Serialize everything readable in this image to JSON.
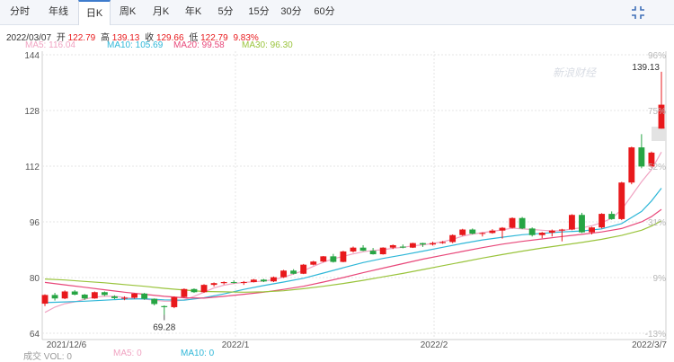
{
  "tabs": [
    {
      "label": "分时",
      "active": false
    },
    {
      "label": "年线",
      "active": false
    },
    {
      "label": "日K",
      "active": true
    },
    {
      "label": "周K",
      "active": false
    },
    {
      "label": "月K",
      "active": false
    },
    {
      "label": "年K",
      "active": false
    },
    {
      "label": "5分",
      "active": false
    },
    {
      "label": "15分",
      "active": false
    },
    {
      "label": "30分",
      "active": false
    },
    {
      "label": "60分",
      "active": false
    }
  ],
  "info": {
    "date": "2022/03/07",
    "open_label": "开",
    "open": "122.79",
    "high_label": "高",
    "high": "139.13",
    "close_label": "收",
    "close": "129.66",
    "low_label": "低",
    "low": "122.79",
    "change": "9.83%"
  },
  "ma_legend": [
    {
      "label": "MA5: 116.04",
      "color": "#f0a3c2"
    },
    {
      "label": "MA10: 105.69",
      "color": "#2fb7d8"
    },
    {
      "label": "MA20: 99.58",
      "color": "#e8487a"
    },
    {
      "label": "MA30: 96.30",
      "color": "#9ac43c"
    }
  ],
  "volume_legend": {
    "vol": "成交 VOL: 0",
    "ma5": "MA5: 0",
    "ma10": "MA10: 0"
  },
  "watermark": "新浪财经",
  "colors": {
    "up": "#e8191c",
    "down": "#27a544",
    "grid": "#e6e6e6",
    "axis_text": "#555"
  },
  "chart_data": {
    "type": "candlestick",
    "ylim": [
      64,
      146
    ],
    "y_ticks": [
      144,
      128,
      112,
      96,
      80,
      64
    ],
    "pct_ticks": [
      "96%",
      "75%",
      "52%",
      "31%",
      "9%",
      "-13%"
    ],
    "x_labels": [
      "2021/12/6",
      "2022/1",
      "2022/2",
      "2022/3/7"
    ],
    "annotations": [
      {
        "text": "139.13"
      },
      {
        "text": "69.28"
      }
    ],
    "candles": [
      [
        72.5,
        75.2,
        71.8,
        75.0
      ],
      [
        75.0,
        75.6,
        73.4,
        74.0
      ],
      [
        74.0,
        76.3,
        73.8,
        76.0
      ],
      [
        76.0,
        76.4,
        74.9,
        75.1
      ],
      [
        75.1,
        75.3,
        73.6,
        74.0
      ],
      [
        74.0,
        76.0,
        73.9,
        75.8
      ],
      [
        75.8,
        76.0,
        74.7,
        75.0
      ],
      [
        74.6,
        74.9,
        73.8,
        74.1
      ],
      [
        74.1,
        74.6,
        73.5,
        74.2
      ],
      [
        74.2,
        75.5,
        73.9,
        75.4
      ],
      [
        75.4,
        75.6,
        73.6,
        73.9
      ],
      [
        73.9,
        74.0,
        72.0,
        72.4
      ],
      [
        71.8,
        72.0,
        69.3,
        71.5
      ],
      [
        71.5,
        74.6,
        71.2,
        74.4
      ],
      [
        74.4,
        76.9,
        74.2,
        76.7
      ],
      [
        76.7,
        76.9,
        75.6,
        75.8
      ],
      [
        75.8,
        78.1,
        75.6,
        77.9
      ],
      [
        77.9,
        78.6,
        77.4,
        78.4
      ],
      [
        78.4,
        78.9,
        78.0,
        78.7
      ],
      [
        78.7,
        79.2,
        78.3,
        78.5
      ],
      [
        78.5,
        79.0,
        77.9,
        78.7
      ],
      [
        78.7,
        79.6,
        78.6,
        79.4
      ],
      [
        79.4,
        79.6,
        78.7,
        78.9
      ],
      [
        78.9,
        80.3,
        78.7,
        80.1
      ],
      [
        80.1,
        82.2,
        79.9,
        82.0
      ],
      [
        82.0,
        82.4,
        80.9,
        81.1
      ],
      [
        81.1,
        83.9,
        81.0,
        83.7
      ],
      [
        83.7,
        84.8,
        83.5,
        84.6
      ],
      [
        84.6,
        86.2,
        84.4,
        86.1
      ],
      [
        86.1,
        86.8,
        84.3,
        84.5
      ],
      [
        84.5,
        87.7,
        84.4,
        87.5
      ],
      [
        87.5,
        88.9,
        87.2,
        88.6
      ],
      [
        88.6,
        89.3,
        87.6,
        87.7
      ],
      [
        87.7,
        88.5,
        86.6,
        86.7
      ],
      [
        86.7,
        88.7,
        86.6,
        88.6
      ],
      [
        88.6,
        89.5,
        88.2,
        89.3
      ],
      [
        88.9,
        89.5,
        88.4,
        88.6
      ],
      [
        88.6,
        90.0,
        88.5,
        89.9
      ],
      [
        89.9,
        90.0,
        88.8,
        89.5
      ],
      [
        89.5,
        90.3,
        89.2,
        89.9
      ],
      [
        89.9,
        90.5,
        89.7,
        90.2
      ],
      [
        90.2,
        92.4,
        89.9,
        92.2
      ],
      [
        92.2,
        94.0,
        92.0,
        93.8
      ],
      [
        93.8,
        94.1,
        92.4,
        92.6
      ],
      [
        92.6,
        93.0,
        91.8,
        92.8
      ],
      [
        92.8,
        93.9,
        92.6,
        93.5
      ],
      [
        93.5,
        94.5,
        91.2,
        94.3
      ],
      [
        94.3,
        97.3,
        94.1,
        97.1
      ],
      [
        97.1,
        97.4,
        93.9,
        94.1
      ],
      [
        94.1,
        94.4,
        91.8,
        92.2
      ],
      [
        92.2,
        93.1,
        91.3,
        92.9
      ],
      [
        92.9,
        93.8,
        91.8,
        93.5
      ],
      [
        93.5,
        94.0,
        90.4,
        93.8
      ],
      [
        93.8,
        98.2,
        93.6,
        98.0
      ],
      [
        98.0,
        98.6,
        92.8,
        93.0
      ],
      [
        93.0,
        94.6,
        92.4,
        94.4
      ],
      [
        94.4,
        98.5,
        94.1,
        98.3
      ],
      [
        98.3,
        99.0,
        96.6,
        96.8
      ],
      [
        96.8,
        107.5,
        96.5,
        107.3
      ],
      [
        107.3,
        117.6,
        106.8,
        117.4
      ],
      [
        117.4,
        121.2,
        111.4,
        111.9
      ],
      [
        111.9,
        116.2,
        111.6,
        115.9
      ],
      [
        122.79,
        139.13,
        122.79,
        129.66
      ]
    ],
    "series": [
      {
        "name": "MA5",
        "values": [
          [
            0,
            70.0
          ],
          [
            1,
            71.5
          ],
          [
            2,
            72.5
          ],
          [
            3,
            73.0
          ],
          [
            4,
            73.8
          ],
          [
            5,
            74.4
          ],
          [
            6,
            74.6
          ],
          [
            7,
            74.6
          ],
          [
            8,
            74.3
          ],
          [
            9,
            74.0
          ],
          [
            10,
            73.8
          ],
          [
            11,
            73.5
          ],
          [
            12,
            73.2
          ],
          [
            13,
            73.2
          ],
          [
            14,
            73.6
          ],
          [
            15,
            74.6
          ],
          [
            16,
            75.8
          ],
          [
            17,
            77.0
          ],
          [
            18,
            77.8
          ],
          [
            19,
            78.3
          ],
          [
            20,
            78.6
          ],
          [
            21,
            78.8
          ],
          [
            22,
            79.0
          ],
          [
            23,
            79.4
          ],
          [
            24,
            80.1
          ],
          [
            25,
            81.0
          ],
          [
            26,
            82.0
          ],
          [
            27,
            83.2
          ],
          [
            28,
            84.4
          ],
          [
            29,
            85.4
          ],
          [
            30,
            86.1
          ],
          [
            31,
            86.8
          ],
          [
            32,
            87.4
          ],
          [
            33,
            87.8
          ],
          [
            34,
            88.0
          ],
          [
            35,
            88.4
          ],
          [
            36,
            88.7
          ],
          [
            37,
            89.1
          ],
          [
            38,
            89.4
          ],
          [
            39,
            89.8
          ],
          [
            40,
            90.3
          ],
          [
            41,
            91.0
          ],
          [
            42,
            91.9
          ],
          [
            43,
            92.5
          ],
          [
            44,
            92.9
          ],
          [
            45,
            93.3
          ],
          [
            46,
            93.7
          ],
          [
            47,
            94.2
          ],
          [
            48,
            94.0
          ],
          [
            49,
            93.8
          ],
          [
            50,
            93.6
          ],
          [
            51,
            93.4
          ],
          [
            52,
            93.5
          ],
          [
            53,
            94.0
          ],
          [
            54,
            94.3
          ],
          [
            55,
            94.9
          ],
          [
            56,
            95.8
          ],
          [
            57,
            97.0
          ],
          [
            58,
            99.5
          ],
          [
            59,
            103.5
          ],
          [
            60,
            107.5
          ],
          [
            61,
            111.0
          ],
          [
            62,
            116.04
          ]
        ]
      },
      {
        "name": "MA10",
        "values": [
          [
            0,
            72.8
          ],
          [
            2,
            73.0
          ],
          [
            4,
            73.2
          ],
          [
            6,
            73.5
          ],
          [
            8,
            73.8
          ],
          [
            10,
            73.9
          ],
          [
            12,
            73.6
          ],
          [
            14,
            73.5
          ],
          [
            16,
            74.2
          ],
          [
            18,
            75.3
          ],
          [
            20,
            76.6
          ],
          [
            22,
            77.7
          ],
          [
            24,
            78.7
          ],
          [
            26,
            79.8
          ],
          [
            28,
            81.3
          ],
          [
            30,
            82.8
          ],
          [
            32,
            84.3
          ],
          [
            34,
            85.5
          ],
          [
            36,
            86.5
          ],
          [
            38,
            87.6
          ],
          [
            40,
            88.7
          ],
          [
            42,
            89.8
          ],
          [
            44,
            90.8
          ],
          [
            46,
            91.6
          ],
          [
            48,
            92.3
          ],
          [
            50,
            92.7
          ],
          [
            52,
            93.1
          ],
          [
            54,
            93.4
          ],
          [
            56,
            94.0
          ],
          [
            58,
            95.5
          ],
          [
            60,
            99.0
          ],
          [
            61,
            102.0
          ],
          [
            62,
            105.69
          ]
        ]
      },
      {
        "name": "MA20",
        "values": [
          [
            0,
            78.6
          ],
          [
            2,
            77.9
          ],
          [
            4,
            77.2
          ],
          [
            6,
            76.5
          ],
          [
            8,
            75.8
          ],
          [
            10,
            75.2
          ],
          [
            12,
            74.6
          ],
          [
            14,
            74.2
          ],
          [
            16,
            74.1
          ],
          [
            18,
            74.6
          ],
          [
            20,
            75.2
          ],
          [
            22,
            75.8
          ],
          [
            24,
            76.6
          ],
          [
            26,
            77.5
          ],
          [
            28,
            78.7
          ],
          [
            30,
            80.0
          ],
          [
            32,
            81.4
          ],
          [
            34,
            82.7
          ],
          [
            36,
            84.0
          ],
          [
            38,
            85.3
          ],
          [
            40,
            86.4
          ],
          [
            42,
            87.5
          ],
          [
            44,
            88.6
          ],
          [
            46,
            89.6
          ],
          [
            48,
            90.4
          ],
          [
            50,
            91.1
          ],
          [
            52,
            91.8
          ],
          [
            54,
            92.4
          ],
          [
            56,
            93.1
          ],
          [
            58,
            94.1
          ],
          [
            60,
            96.0
          ],
          [
            61,
            97.5
          ],
          [
            62,
            99.58
          ]
        ]
      },
      {
        "name": "MA30",
        "values": [
          [
            0,
            79.6
          ],
          [
            2,
            79.3
          ],
          [
            4,
            78.9
          ],
          [
            6,
            78.5
          ],
          [
            8,
            78.0
          ],
          [
            10,
            77.5
          ],
          [
            12,
            76.9
          ],
          [
            14,
            76.4
          ],
          [
            16,
            76.0
          ],
          [
            18,
            75.9
          ],
          [
            20,
            75.8
          ],
          [
            22,
            75.9
          ],
          [
            24,
            76.2
          ],
          [
            26,
            76.8
          ],
          [
            28,
            77.5
          ],
          [
            30,
            78.3
          ],
          [
            32,
            79.2
          ],
          [
            34,
            80.2
          ],
          [
            36,
            81.2
          ],
          [
            38,
            82.3
          ],
          [
            40,
            83.4
          ],
          [
            42,
            84.5
          ],
          [
            44,
            85.6
          ],
          [
            46,
            86.6
          ],
          [
            48,
            87.6
          ],
          [
            50,
            88.5
          ],
          [
            52,
            89.3
          ],
          [
            54,
            90.1
          ],
          [
            56,
            91.0
          ],
          [
            58,
            92.1
          ],
          [
            60,
            93.6
          ],
          [
            61,
            94.8
          ],
          [
            62,
            96.3
          ]
        ]
      }
    ]
  }
}
